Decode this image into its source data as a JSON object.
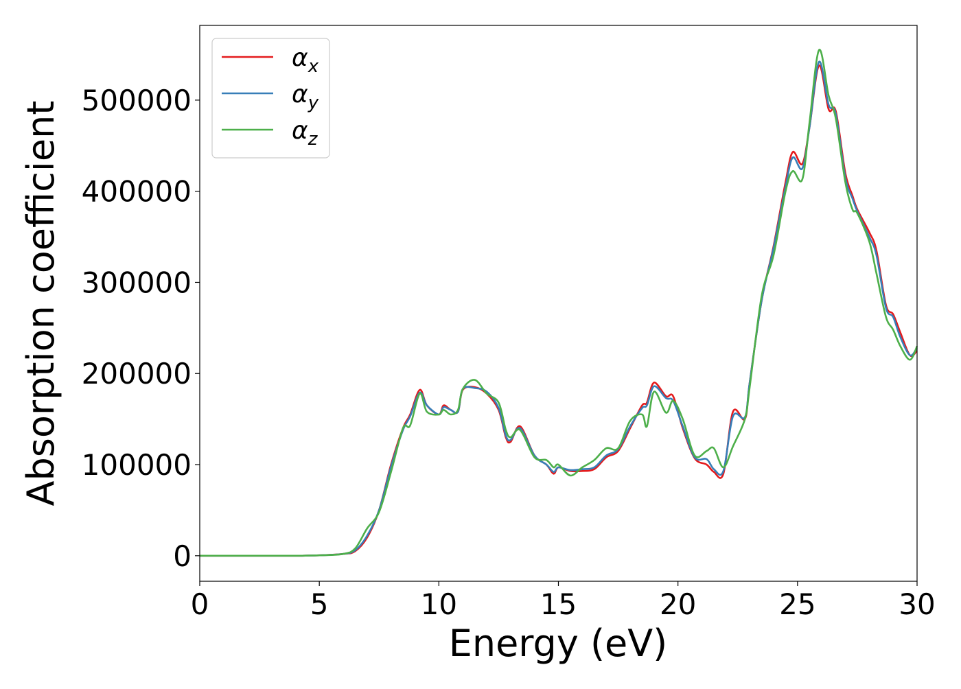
{
  "chart_data": {
    "type": "line",
    "title": "",
    "xlabel": "Energy (eV)",
    "ylabel": "Absorption coefficient",
    "xlim": [
      0,
      30
    ],
    "ylim": [
      -28000,
      582000
    ],
    "grid": false,
    "legend_position": "top-left",
    "xticks": [
      0,
      5,
      10,
      15,
      20,
      25,
      30
    ],
    "yticks": [
      0,
      100000,
      200000,
      300000,
      400000,
      500000
    ],
    "x": [
      0,
      2,
      4,
      5,
      6,
      6.5,
      7,
      7.5,
      8,
      8.5,
      8.8,
      9.2,
      9.5,
      10,
      10.2,
      10.5,
      10.8,
      11,
      11.5,
      12,
      12.5,
      12.8,
      13,
      13.4,
      14,
      14.5,
      14.8,
      15,
      15.5,
      16,
      16.5,
      17,
      17.5,
      18,
      18.5,
      18.7,
      19,
      19.5,
      19.8,
      20.2,
      20.7,
      21.2,
      21.5,
      21.9,
      22.3,
      22.8,
      23,
      23.5,
      24,
      24.5,
      24.8,
      25.2,
      25.5,
      25.9,
      26.3,
      26.6,
      27,
      27.3,
      27.5,
      28,
      28.3,
      28.7,
      29,
      29.3,
      29.7,
      30
    ],
    "series": [
      {
        "name": "α",
        "sub": "x",
        "color": "#e41a1c",
        "values": [
          0,
          0,
          0,
          500,
          2000,
          5000,
          20000,
          50000,
          100000,
          140000,
          155000,
          182000,
          165000,
          155000,
          165000,
          160000,
          158000,
          182000,
          185000,
          178000,
          160000,
          130000,
          125000,
          142000,
          110000,
          100000,
          90000,
          97000,
          93000,
          93000,
          95000,
          108000,
          115000,
          140000,
          165000,
          168000,
          190000,
          175000,
          175000,
          140000,
          107000,
          100000,
          92000,
          90000,
          158000,
          150000,
          190000,
          280000,
          340000,
          410000,
          443000,
          430000,
          470000,
          538000,
          490000,
          488000,
          420000,
          395000,
          380000,
          355000,
          335000,
          275000,
          265000,
          245000,
          220000,
          225000
        ]
      },
      {
        "name": "α",
        "sub": "y",
        "color": "#377eb8",
        "values": [
          0,
          0,
          0,
          500,
          2000,
          6000,
          22000,
          50000,
          98000,
          138000,
          153000,
          179000,
          165000,
          155000,
          163000,
          160000,
          158000,
          183000,
          184000,
          180000,
          162000,
          132000,
          127000,
          140000,
          110000,
          100000,
          92000,
          97000,
          94000,
          95000,
          97000,
          110000,
          117000,
          142000,
          162000,
          165000,
          186000,
          173000,
          170000,
          142000,
          108000,
          106000,
          95000,
          93000,
          153000,
          152000,
          190000,
          280000,
          338000,
          405000,
          437000,
          425000,
          470000,
          542000,
          495000,
          485000,
          415000,
          392000,
          378000,
          350000,
          330000,
          272000,
          262000,
          240000,
          220000,
          228000
        ]
      },
      {
        "name": "α",
        "sub": "z",
        "color": "#4daf4a",
        "values": [
          0,
          0,
          0,
          500,
          2000,
          8000,
          30000,
          48000,
          92000,
          140000,
          143000,
          178000,
          158000,
          155000,
          160000,
          155000,
          160000,
          183000,
          193000,
          178000,
          168000,
          138000,
          130000,
          138000,
          108000,
          105000,
          97000,
          100000,
          88000,
          97000,
          105000,
          118000,
          118000,
          148000,
          155000,
          142000,
          180000,
          157000,
          170000,
          150000,
          110000,
          115000,
          118000,
          97000,
          120000,
          150000,
          185000,
          285000,
          330000,
          400000,
          422000,
          413000,
          475000,
          555000,
          505000,
          480000,
          410000,
          380000,
          376000,
          345000,
          310000,
          262000,
          248000,
          230000,
          215000,
          230000
        ]
      }
    ]
  }
}
